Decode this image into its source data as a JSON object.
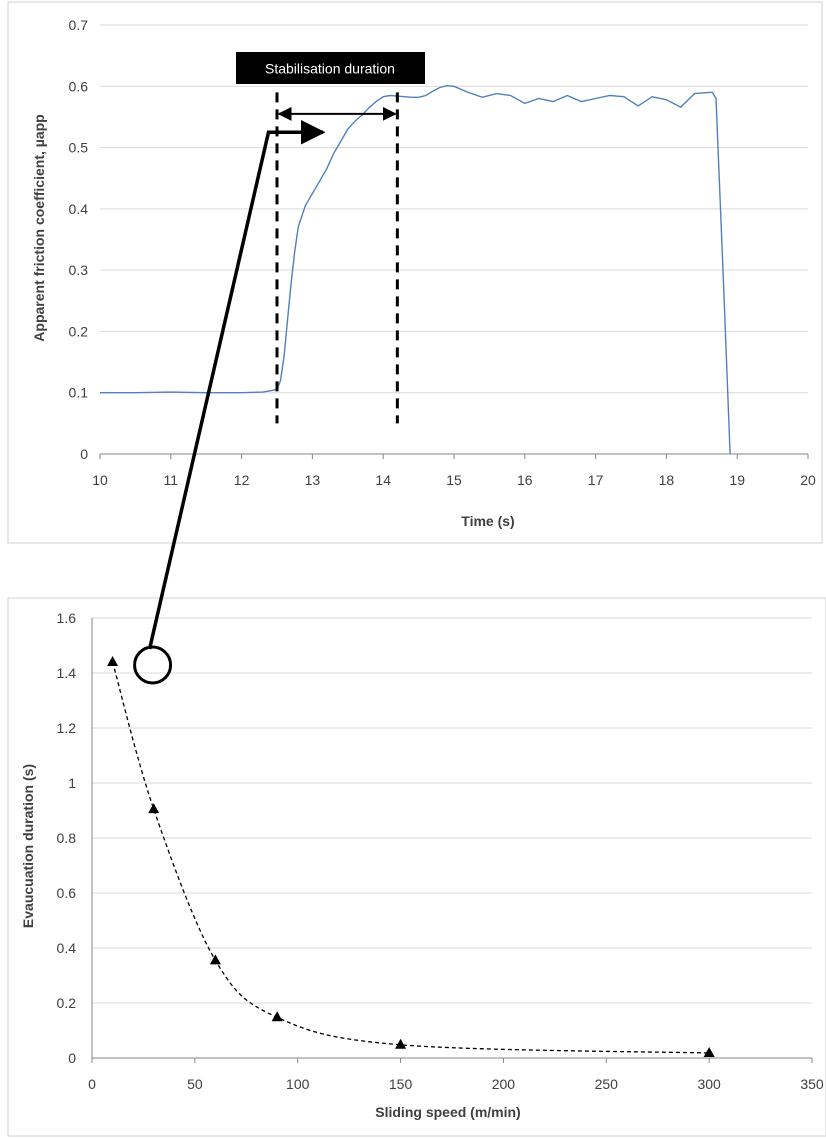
{
  "colors": {
    "curve": "#4f81bd",
    "grid": "#d9d9d9",
    "axis": "#868686",
    "frame": "#d0d0d0",
    "ink": "#000000",
    "label_box": "#000000",
    "label_text": "#ffffff"
  },
  "chart_data": [
    {
      "type": "line",
      "title": "",
      "xlabel": "Time (s)",
      "ylabel": "Apparent friction coefficient, µapp",
      "xlim": [
        10,
        20
      ],
      "ylim": [
        0,
        0.7
      ],
      "x_ticks": [
        10,
        11,
        12,
        13,
        14,
        15,
        16,
        17,
        18,
        19,
        20
      ],
      "y_ticks": [
        0,
        0.1,
        0.2,
        0.3,
        0.4,
        0.5,
        0.6,
        0.7
      ],
      "grid": "horizontal",
      "legend": "none",
      "series": [
        {
          "x": [
            10,
            10.5,
            11,
            11.5,
            12,
            12.3,
            12.5,
            12.55,
            12.6,
            12.65,
            12.7,
            12.75,
            12.8,
            12.9,
            13.0,
            13.1,
            13.2,
            13.3,
            13.4,
            13.5,
            13.6,
            13.7,
            13.8,
            13.9,
            14.0,
            14.1,
            14.2,
            14.3,
            14.4,
            14.5,
            14.6,
            14.7,
            14.8,
            14.9,
            15.0,
            15.2,
            15.4,
            15.6,
            15.8,
            16.0,
            16.2,
            16.4,
            16.6,
            16.8,
            17.0,
            17.2,
            17.4,
            17.6,
            17.8,
            18.0,
            18.2,
            18.4,
            18.6,
            18.65,
            18.7,
            18.8,
            18.9
          ],
          "y": [
            0.1,
            0.1,
            0.101,
            0.1,
            0.1,
            0.101,
            0.105,
            0.12,
            0.16,
            0.22,
            0.28,
            0.33,
            0.37,
            0.405,
            0.425,
            0.445,
            0.465,
            0.49,
            0.51,
            0.53,
            0.543,
            0.553,
            0.565,
            0.575,
            0.583,
            0.585,
            0.584,
            0.583,
            0.582,
            0.582,
            0.585,
            0.592,
            0.598,
            0.601,
            0.6,
            0.59,
            0.582,
            0.588,
            0.585,
            0.572,
            0.58,
            0.575,
            0.585,
            0.575,
            0.58,
            0.585,
            0.583,
            0.568,
            0.583,
            0.578,
            0.566,
            0.588,
            0.59,
            0.59,
            0.58,
            0.3,
            0.0
          ]
        }
      ],
      "annotations": {
        "label": "Stabilisation duration",
        "dashed_markers_x": [
          12.5,
          14.2
        ],
        "arrow_y": 0.555
      }
    },
    {
      "type": "scatter",
      "title": "",
      "xlabel": "Sliding speed (m/min)",
      "ylabel": "Evaucuation duration (s)",
      "xlim": [
        0,
        350
      ],
      "ylim": [
        0,
        1.6
      ],
      "x_ticks": [
        0,
        50,
        100,
        150,
        200,
        250,
        300,
        350
      ],
      "y_ticks": [
        0,
        0.2,
        0.4,
        0.6,
        0.8,
        1,
        1.2,
        1.4,
        1.6
      ],
      "grid": "horizontal",
      "legend": "none",
      "marker": "triangle",
      "trendline": "dashed",
      "x": [
        10,
        30,
        60,
        90,
        150,
        300
      ],
      "y": [
        1.44,
        0.905,
        0.355,
        0.148,
        0.048,
        0.018
      ]
    }
  ]
}
